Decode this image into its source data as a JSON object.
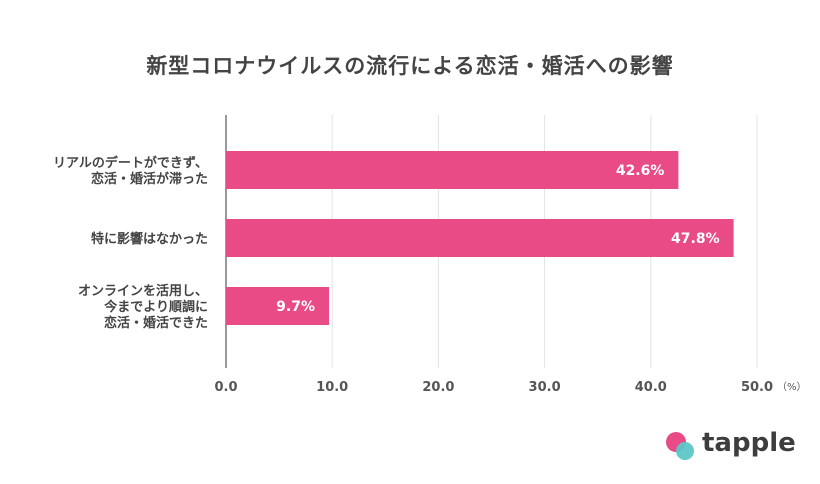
{
  "chart_data": {
    "type": "bar",
    "orientation": "horizontal",
    "title": "新型コロナウイルスの流行による恋活・婚活への影響",
    "categories": [
      [
        "リアルのデートができず、",
        "恋活・婚活が滞った"
      ],
      [
        "特に影響はなかった"
      ],
      [
        "オンラインを活用し、",
        "今までより順調に",
        "恋活・婚活できた"
      ]
    ],
    "values": [
      42.6,
      47.8,
      9.7
    ],
    "value_labels": [
      "42.6%",
      "47.8%",
      "9.7%"
    ],
    "xlim": [
      0,
      50
    ],
    "xticks": [
      "0.0",
      "10.0",
      "20.0",
      "30.0",
      "40.0",
      "50.0"
    ],
    "xtick_values": [
      0,
      10,
      20,
      30,
      40,
      50
    ],
    "unit": "（%）",
    "grid": true,
    "bar_color": "#e94b87"
  },
  "logo": {
    "text": "tapple",
    "colors": [
      "#e94b87",
      "#5cc7c7"
    ]
  }
}
